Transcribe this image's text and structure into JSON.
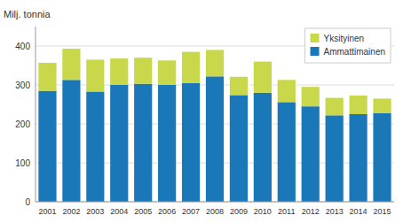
{
  "chart_data": {
    "type": "bar",
    "stacked": true,
    "ylabel": "Milj. tonnia",
    "categories": [
      "2001",
      "2002",
      "2003",
      "2004",
      "2005",
      "2006",
      "2007",
      "2008",
      "2009",
      "2010",
      "2011",
      "2012",
      "2013",
      "2014",
      "2015"
    ],
    "series": [
      {
        "name": "Ammattimainen",
        "color": "#1a78b8",
        "values": [
          285,
          313,
          283,
          300,
          303,
          300,
          305,
          322,
          274,
          280,
          256,
          245,
          222,
          225,
          228
        ]
      },
      {
        "name": "Yksityinen",
        "color": "#c8d84a",
        "values": [
          72,
          80,
          82,
          68,
          67,
          63,
          80,
          68,
          47,
          80,
          57,
          50,
          45,
          48,
          37
        ]
      }
    ],
    "ylim": [
      0,
      450
    ],
    "yticks": [
      0,
      100,
      200,
      300,
      400
    ],
    "grid": true,
    "legend": "upper right"
  }
}
